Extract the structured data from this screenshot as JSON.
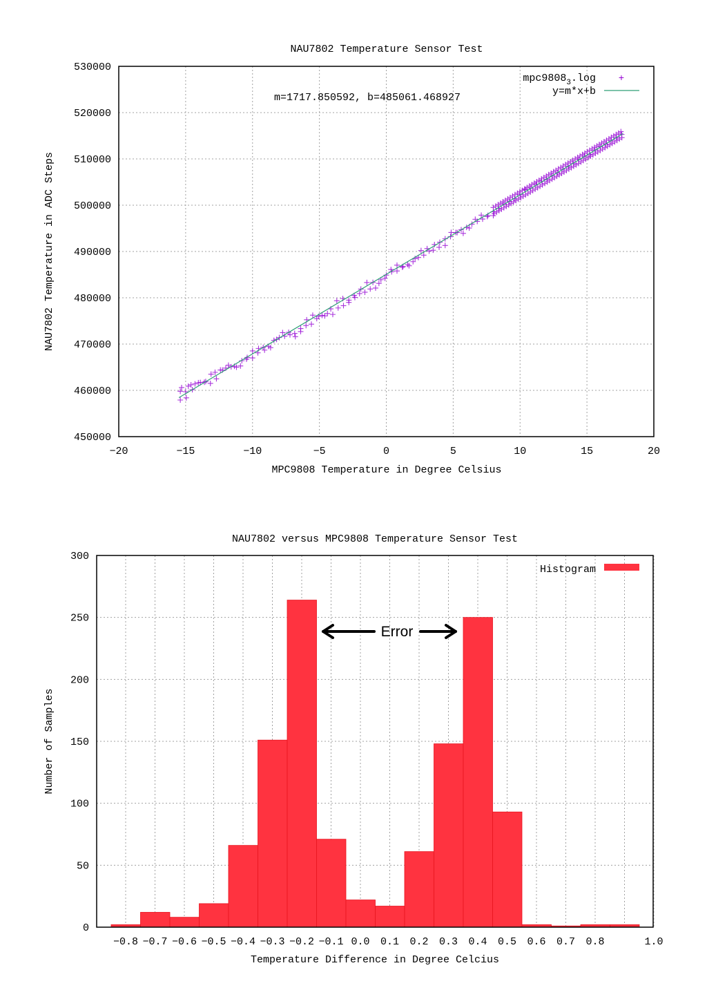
{
  "chart_data": [
    {
      "type": "scatter",
      "title": "NAU7802 Temperature Sensor Test",
      "xlabel": "MPC9808 Temperature in Degree Celsius",
      "ylabel": "NAU7802 Temperature in ADC Steps",
      "xlim": [
        -20,
        20
      ],
      "ylim": [
        450000,
        530000
      ],
      "xticks": [
        -20,
        -15,
        -10,
        -5,
        0,
        5,
        10,
        15,
        20
      ],
      "yticks": [
        450000,
        460000,
        470000,
        480000,
        490000,
        500000,
        510000,
        520000,
        530000
      ],
      "grid": true,
      "legend_position": "top-right",
      "annotation": "m=1717.850592, b=485061.468927",
      "series": [
        {
          "name": "mpc9808_3.log",
          "legend_label": "mpc9808",
          "legend_subscript": "3",
          "legend_suffix": ".log",
          "kind": "points",
          "marker": "+",
          "color": "#9400d3",
          "x_range": [
            -15.5,
            17.7
          ],
          "points": [
            [
              -15.4,
              459800
            ],
            [
              -15.3,
              460600
            ],
            [
              -15.0,
              459700
            ],
            [
              -14.8,
              460900
            ],
            [
              -14.6,
              461200
            ],
            [
              -14.3,
              461400
            ],
            [
              -13.9,
              461700
            ],
            [
              -13.5,
              461900
            ],
            [
              -13.1,
              463500
            ],
            [
              -12.8,
              463900
            ],
            [
              -12.4,
              464400
            ],
            [
              -12.0,
              464800
            ],
            [
              -11.6,
              465100
            ],
            [
              -11.2,
              465000
            ],
            [
              -10.8,
              466400
            ],
            [
              -10.4,
              467100
            ],
            [
              -10.0,
              467000
            ],
            [
              -9.6,
              468100
            ],
            [
              -9.2,
              469300
            ],
            [
              -8.8,
              469500
            ],
            [
              -8.4,
              470800
            ],
            [
              -8.0,
              471400
            ],
            [
              -7.6,
              471700
            ],
            [
              -7.2,
              472000
            ],
            [
              -6.8,
              471600
            ],
            [
              -6.4,
              472700
            ],
            [
              -6.0,
              474000
            ],
            [
              -5.6,
              474300
            ],
            [
              -5.2,
              475500
            ],
            [
              -4.8,
              476200
            ],
            [
              -4.4,
              476600
            ],
            [
              -4.0,
              476400
            ],
            [
              -3.6,
              477800
            ],
            [
              -3.2,
              478300
            ],
            [
              -2.8,
              479000
            ],
            [
              -2.4,
              480500
            ],
            [
              -2.0,
              480900
            ],
            [
              -1.6,
              481200
            ],
            [
              -1.2,
              481900
            ],
            [
              -0.8,
              482100
            ],
            [
              -0.4,
              483900
            ],
            [
              0.0,
              484900
            ],
            [
              0.4,
              485600
            ],
            [
              0.8,
              485800
            ],
            [
              1.2,
              486600
            ],
            [
              1.6,
              487200
            ],
            [
              2.0,
              487800
            ],
            [
              2.4,
              488700
            ],
            [
              2.8,
              489200
            ],
            [
              3.2,
              490100
            ],
            [
              3.6,
              491500
            ],
            [
              4.0,
              492000
            ],
            [
              4.4,
              491300
            ],
            [
              4.8,
              493200
            ],
            [
              5.2,
              494100
            ],
            [
              5.6,
              494700
            ],
            [
              6.0,
              495200
            ],
            [
              6.4,
              495900
            ],
            [
              6.8,
              496500
            ],
            [
              7.2,
              497000
            ],
            [
              7.6,
              497800
            ],
            [
              8.0,
              498600
            ],
            [
              8.4,
              499300
            ],
            [
              8.8,
              500200
            ],
            [
              9.2,
              500800
            ],
            [
              9.6,
              501400
            ],
            [
              10.0,
              502300
            ],
            [
              10.4,
              503400
            ],
            [
              10.8,
              503700
            ],
            [
              11.2,
              504500
            ],
            [
              11.6,
              505200
            ],
            [
              12.0,
              505600
            ],
            [
              12.4,
              506300
            ],
            [
              12.8,
              507000
            ],
            [
              13.2,
              507800
            ],
            [
              13.6,
              508400
            ],
            [
              14.0,
              509000
            ],
            [
              14.4,
              509900
            ],
            [
              14.8,
              510600
            ],
            [
              15.2,
              511000
            ],
            [
              15.6,
              511900
            ],
            [
              16.0,
              512600
            ],
            [
              16.4,
              513200
            ],
            [
              16.8,
              514000
            ],
            [
              17.2,
              514600
            ],
            [
              17.6,
              515300
            ]
          ]
        },
        {
          "name": "y=m*x+b",
          "kind": "line",
          "color": "#2e9f76",
          "slope": 1717.850592,
          "intercept": 485061.468927,
          "x_range": [
            -15.5,
            17.7
          ]
        }
      ]
    },
    {
      "type": "bar",
      "title": "NAU7802 versus MPC9808 Temperature Sensor Test",
      "xlabel": "Temperature Difference in Degree Celcius",
      "ylabel": "Number of Samples",
      "ylim": [
        0,
        300
      ],
      "yticks": [
        0,
        50,
        100,
        150,
        200,
        250,
        300
      ],
      "grid": true,
      "legend_position": "top-right",
      "xtick_labels": [
        "-0.8",
        "-0.7",
        "-0.6",
        "-0.5",
        "-0.4",
        "-0.3",
        "-0.2",
        "-0.1",
        "0.0",
        "0.1",
        "0.2",
        "0.3",
        "0.4",
        "0.5",
        "0.6",
        "0.7",
        "0.8",
        "1.0"
      ],
      "annotation": "Error",
      "series": [
        {
          "name": "Histogram",
          "color": "#ff3340",
          "bin_left_edges": [
            -0.85,
            -0.75,
            -0.65,
            -0.55,
            -0.45,
            -0.35,
            -0.25,
            -0.15,
            -0.05,
            0.05,
            0.15,
            0.25,
            0.35,
            0.45,
            0.55,
            0.65,
            0.75,
            0.85
          ],
          "values": [
            2,
            12,
            8,
            19,
            66,
            151,
            264,
            71,
            22,
            17,
            61,
            148,
            250,
            93,
            2,
            1,
            2,
            2
          ]
        }
      ]
    }
  ]
}
